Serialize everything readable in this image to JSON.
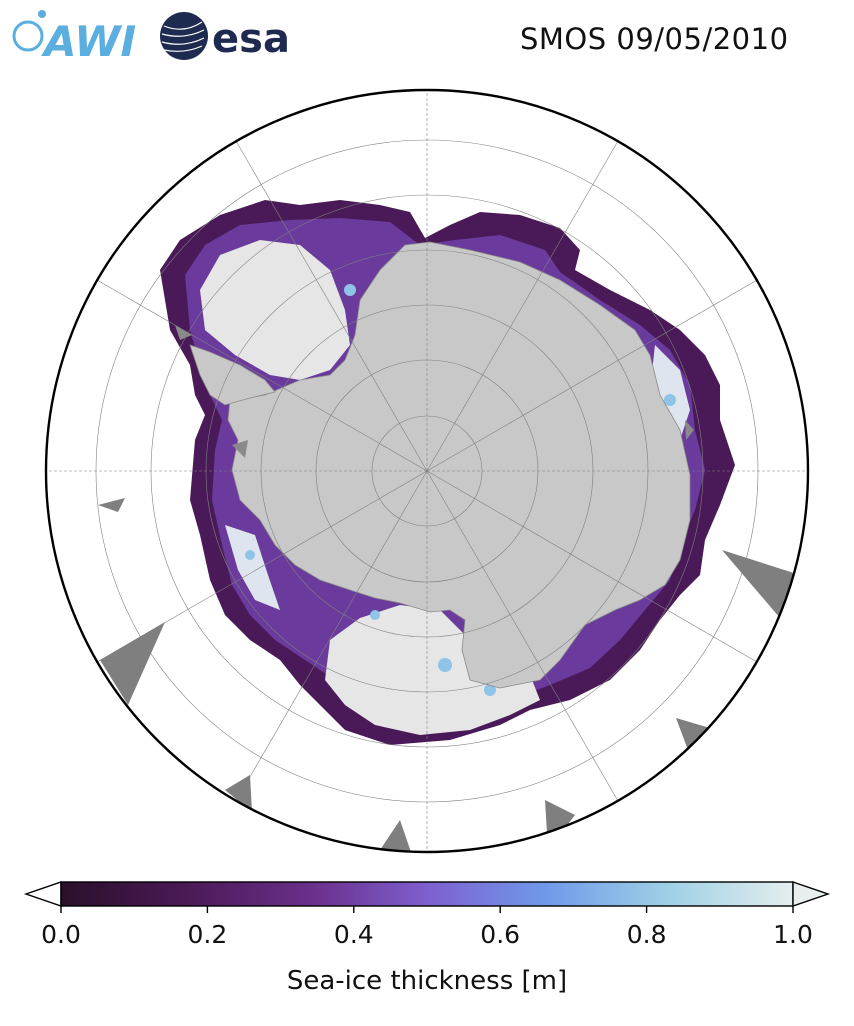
{
  "header": {
    "title": "SMOS 09/05/2010",
    "logos": [
      {
        "name": "awi-logo",
        "text": "AWI",
        "color": "#5aaee0"
      },
      {
        "name": "esa-logo",
        "text": "esa",
        "color": "#1e2a50"
      }
    ]
  },
  "map": {
    "projection": "south-polar-stereographic",
    "land_color": "#c8c8c8",
    "missing_data_color": "#7f7f7f",
    "gridlines": true
  },
  "colorbar": {
    "label": "Sea-ice thickness [m]",
    "ticks": [
      "0.0",
      "0.2",
      "0.4",
      "0.6",
      "0.8",
      "1.0"
    ],
    "tick_values": [
      0.0,
      0.2,
      0.4,
      0.6,
      0.8,
      1.0
    ],
    "range": [
      0.0,
      1.0
    ],
    "extend": "both",
    "colormap": [
      "#2a0f2a",
      "#4a1a55",
      "#6a2f8a",
      "#7e5fcf",
      "#6f99e8",
      "#9fd0e6",
      "#e4eeee"
    ]
  }
}
